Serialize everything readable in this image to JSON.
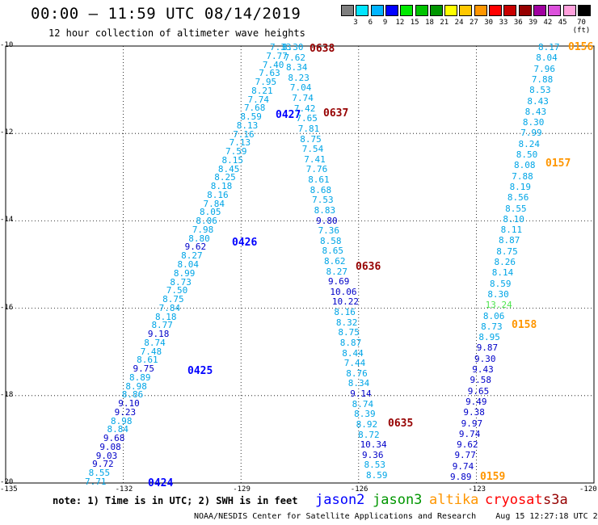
{
  "header": {
    "title": "00:00 – 11:59 UTC 08/14/2019",
    "subtitle": "12 hour collection of altimeter wave heights"
  },
  "color_scale": {
    "labels": [
      "3",
      "6",
      "9",
      "12",
      "15",
      "18",
      "21",
      "24",
      "27",
      "30",
      "33",
      "36",
      "39",
      "42",
      "45",
      "70 (ft)"
    ],
    "colors": [
      "#7f7f7f",
      "#00e5ff",
      "#00b4ff",
      "#0000ff",
      "#00e900",
      "#00c300",
      "#009600",
      "#ffff00",
      "#ffc800",
      "#ff9600",
      "#ff0000",
      "#c80000",
      "#960000",
      "#a000a0",
      "#dc50dc",
      "#ffa0dc",
      "#000000"
    ]
  },
  "map": {
    "lat_labels": [
      "-10",
      "-12",
      "-14",
      "-16",
      "-18",
      "-20"
    ],
    "lon_labels": [
      "-135",
      "-132",
      "-129",
      "-126",
      "-123",
      "-120"
    ]
  },
  "tracks": [
    {
      "pass": "0424",
      "pass_color": "#0000ff",
      "values": [
        "7.33",
        "7.77",
        "7.40",
        "7.63",
        "7.95",
        "8.21",
        "7.74",
        "7.68",
        "8.59",
        "8.13",
        "7.16",
        "7.13",
        "7.59",
        "8.15",
        "8.45",
        "8.25",
        "8.18",
        "8.16",
        "7.84",
        "8.05",
        "8.06",
        "7.98",
        "8.80",
        "9.62",
        "8.27",
        "8.04",
        "8.99",
        "8.73",
        "7.50",
        "8.75",
        "7.84",
        "8.18",
        "8.77",
        "9.18",
        "8.74",
        "7.48",
        "8.61",
        "9.75",
        "8.89",
        "8.98",
        "8.86",
        "9.10",
        "9.23",
        "8.98",
        "8.84",
        "9.68",
        "9.08",
        "9.03",
        "9.72",
        "8.55",
        "7.71"
      ]
    },
    {
      "pass": "0425",
      "pass_color": "#0000ff",
      "values": []
    },
    {
      "pass": "0426",
      "pass_color": "#0000ff",
      "values": []
    },
    {
      "pass": "0427",
      "pass_color": "#0000ff",
      "values": []
    },
    {
      "pass": "0638",
      "pass_color": "#960000",
      "values": [
        "8.30",
        "7.62",
        "8.34",
        "8.23",
        "7.04",
        "7.74",
        "7.42",
        "7.65",
        "7.81",
        "8.75",
        "7.54",
        "7.41",
        "7.76",
        "8.61",
        "8.68",
        "7.53",
        "8.83",
        "9.80",
        "7.36",
        "8.58",
        "8.65",
        "8.62",
        "8.27",
        "9.69",
        "10.06",
        "10.22",
        "8.16",
        "8.32",
        "8.75",
        "8.87",
        "8.44",
        "7.44",
        "8.76",
        "8.34",
        "9.14",
        "8.74",
        "8.39",
        "8.92",
        "8.72",
        "10.34",
        "9.36",
        "8.53",
        "8.59"
      ]
    },
    {
      "pass": "0637",
      "pass_color": "#960000",
      "values": []
    },
    {
      "pass": "0636",
      "pass_color": "#960000",
      "values": []
    },
    {
      "pass": "0635",
      "pass_color": "#960000",
      "values": []
    },
    {
      "pass": "0156",
      "pass_color": "#ff9600",
      "values": [
        "8.17",
        "8.04",
        "7.96",
        "7.88",
        "8.53",
        "8.43",
        "8.43",
        "8.30",
        "7.99",
        "8.24",
        "8.50",
        "8.08",
        "7.88",
        "8.19",
        "8.56",
        "8.55",
        "8.10",
        "8.11",
        "8.87",
        "8.75",
        "8.26",
        "8.14",
        "8.59",
        "8.30",
        "13.24",
        "8.06",
        "8.73",
        "8.95",
        "9.87",
        "9.30",
        "9.43",
        "9.58",
        "9.65",
        "9.49",
        "9.38",
        "9.97",
        "9.74",
        "9.62",
        "9.77",
        "9.74",
        "9.89"
      ]
    },
    {
      "pass": "0157",
      "pass_color": "#ff9600",
      "values": []
    },
    {
      "pass": "0158",
      "pass_color": "#ff9600",
      "values": []
    },
    {
      "pass": "0159",
      "pass_color": "#ff9600",
      "values": []
    }
  ],
  "note": "note: 1) Time is in UTC; 2) SWH is in feet",
  "legend": [
    {
      "label": "jason2",
      "color": "#0000ff"
    },
    {
      "label": "jason3",
      "color": "#009600"
    },
    {
      "label": "altika",
      "color": "#ff9600"
    },
    {
      "label": "cryosat",
      "color": "#ff0000"
    },
    {
      "label": "s3a",
      "color": "#960000"
    }
  ],
  "footer": "NOAA/NESDIS Center for Satellite Applications and Research    Aug 15 12:27:18 UTC 2019"
}
